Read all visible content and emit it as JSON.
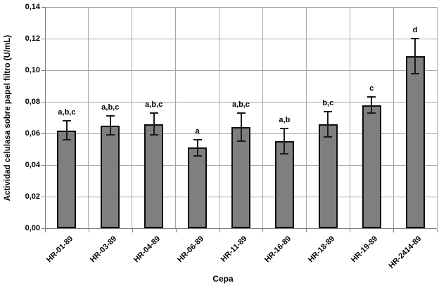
{
  "chart_data": {
    "type": "bar",
    "title": "",
    "xlabel": "Cepa",
    "ylabel": "Actividad celulasa sobre papel filtro (U/mL)",
    "categories": [
      "HR-01-89",
      "HR-03-89",
      "HR-04-89",
      "HR-06-89",
      "HR-11-89",
      "HR-16-89",
      "HR-18-89",
      "HR-19-89",
      "HR-2414-89"
    ],
    "values": [
      0.062,
      0.065,
      0.066,
      0.051,
      0.064,
      0.055,
      0.066,
      0.078,
      0.109
    ],
    "errors": [
      0.006,
      0.006,
      0.007,
      0.005,
      0.009,
      0.008,
      0.008,
      0.005,
      0.011
    ],
    "sig_labels": [
      "a,b,c",
      "a,b,c",
      "a,b,c",
      "a",
      "a,b,c",
      "a,b",
      "b,c",
      "c",
      "d"
    ],
    "ylim": [
      0,
      0.14
    ],
    "ytick_step": 0.02,
    "ytick_labels": [
      "0,00",
      "0,02",
      "0,04",
      "0,06",
      "0,08",
      "0,10",
      "0,12",
      "0,14"
    ],
    "decimal_separator": ",",
    "grid": true,
    "legend": "none",
    "colors": {
      "bar_fill": "#7f7f7f",
      "bar_border": "#0d0d0d",
      "gridline": "#a6a6a6",
      "axis": "#7f7f7f",
      "text": "#000000",
      "background": "#ffffff"
    }
  }
}
